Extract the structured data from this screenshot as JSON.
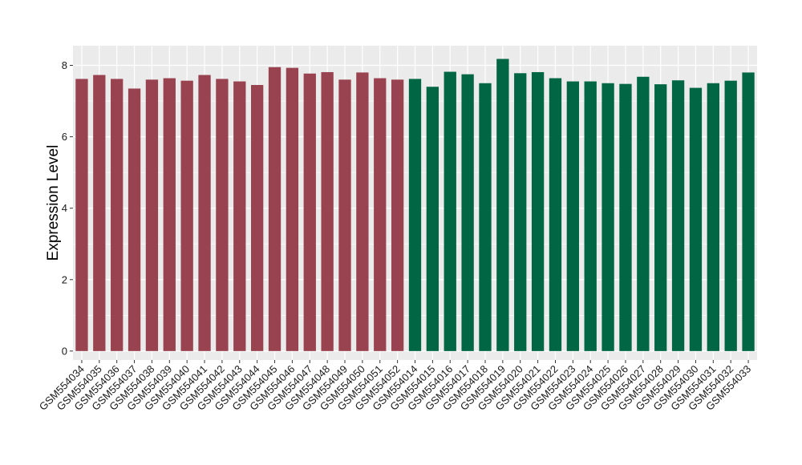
{
  "chart_data": {
    "type": "bar",
    "title": "",
    "xlabel": "",
    "ylabel": "Expression Level",
    "ylim": [
      -0.25,
      8.55
    ],
    "yticks": [
      0,
      2,
      4,
      6,
      8
    ],
    "grid": true,
    "legend": "none",
    "colors": {
      "group1": "#9a4350",
      "group2": "#006644",
      "panel": "#ebebeb",
      "grid": "#ffffff"
    },
    "categories": [
      "GSM554034",
      "GSM554035",
      "GSM554036",
      "GSM554037",
      "GSM554038",
      "GSM554039",
      "GSM554040",
      "GSM554041",
      "GSM554042",
      "GSM554043",
      "GSM554044",
      "GSM554045",
      "GSM554046",
      "GSM554047",
      "GSM554048",
      "GSM554049",
      "GSM554050",
      "GSM554051",
      "GSM554052",
      "GSM554014",
      "GSM554015",
      "GSM554016",
      "GSM554017",
      "GSM554018",
      "GSM554019",
      "GSM554020",
      "GSM554021",
      "GSM554022",
      "GSM554023",
      "GSM554024",
      "GSM554025",
      "GSM554026",
      "GSM554027",
      "GSM554028",
      "GSM554029",
      "GSM554030",
      "GSM554031",
      "GSM554032",
      "GSM554033"
    ],
    "values": [
      7.62,
      7.73,
      7.62,
      7.35,
      7.6,
      7.64,
      7.57,
      7.73,
      7.62,
      7.55,
      7.45,
      7.95,
      7.93,
      7.77,
      7.81,
      7.6,
      7.8,
      7.64,
      7.6,
      7.62,
      7.4,
      7.82,
      7.75,
      7.5,
      8.18,
      7.78,
      7.81,
      7.64,
      7.55,
      7.55,
      7.5,
      7.48,
      7.68,
      7.47,
      7.58,
      7.37,
      7.5,
      7.57,
      7.8
    ],
    "groups": [
      1,
      1,
      1,
      1,
      1,
      1,
      1,
      1,
      1,
      1,
      1,
      1,
      1,
      1,
      1,
      1,
      1,
      1,
      1,
      2,
      2,
      2,
      2,
      2,
      2,
      2,
      2,
      2,
      2,
      2,
      2,
      2,
      2,
      2,
      2,
      2,
      2,
      2,
      2
    ]
  }
}
